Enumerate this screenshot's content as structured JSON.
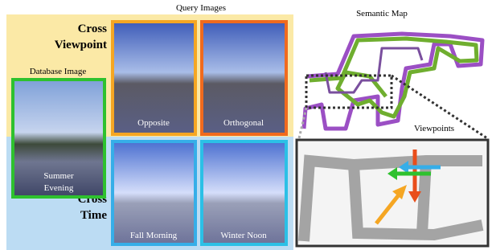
{
  "figure": {
    "query_images": {
      "title": "Query Images",
      "items": [
        "Opposite",
        "Orthogonal",
        "Fall Morning",
        "Winter Noon"
      ]
    },
    "database_image": {
      "title": "Database Image",
      "caption": [
        "Summer",
        "Evening"
      ]
    },
    "cross_viewpoint": [
      "Cross",
      "Viewpoint"
    ],
    "cross_time": [
      "Cross",
      "Time"
    ],
    "semantic_map": {
      "title": "Semantic Map"
    },
    "viewpoints": {
      "title": "Viewpoints"
    }
  }
}
